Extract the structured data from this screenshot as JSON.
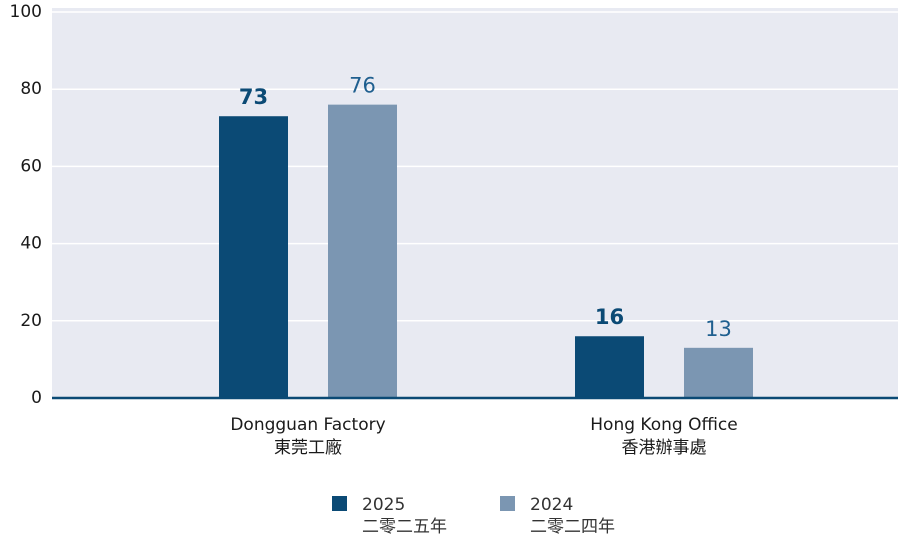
{
  "chart_data": {
    "type": "bar",
    "categories": [
      [
        "Dongguan Factory",
        "東莞工廠"
      ],
      [
        "Hong Kong Office",
        "香港辦事處"
      ]
    ],
    "series": [
      {
        "name": [
          "2025",
          "二零二五年"
        ],
        "color": "#0b4a75",
        "label_color": "#0b4a75",
        "values": [
          73,
          16
        ]
      },
      {
        "name": [
          "2024",
          "二零二四年"
        ],
        "color": "#7b96b2",
        "label_color": "#1f5f8f",
        "values": [
          76,
          13
        ]
      }
    ],
    "ylim": [
      0,
      100
    ],
    "yticks": [
      0,
      20,
      40,
      60,
      80,
      100
    ],
    "grid": true,
    "legend": "bottom"
  }
}
